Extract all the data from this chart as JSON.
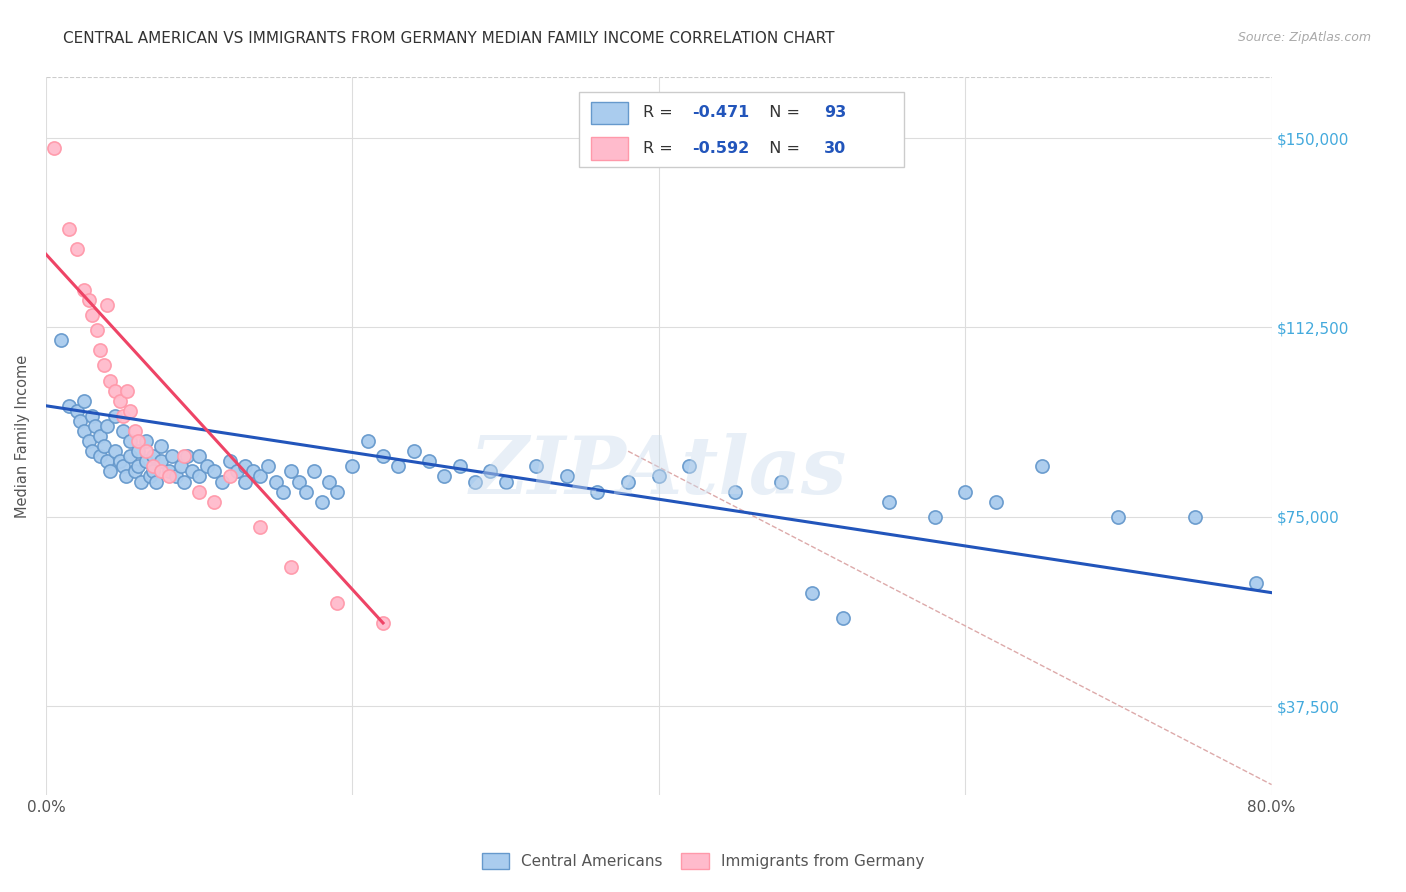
{
  "title": "CENTRAL AMERICAN VS IMMIGRANTS FROM GERMANY MEDIAN FAMILY INCOME CORRELATION CHART",
  "source": "Source: ZipAtlas.com",
  "ylabel": "Median Family Income",
  "x_min": 0.0,
  "x_max": 0.8,
  "y_min": 20000,
  "y_max": 162000,
  "x_ticks": [
    0.0,
    0.2,
    0.4,
    0.6,
    0.8
  ],
  "y_ticks": [
    37500,
    75000,
    112500,
    150000
  ],
  "y_tick_labels": [
    "$37,500",
    "$75,000",
    "$112,500",
    "$150,000"
  ],
  "watermark": "ZIPAtlas",
  "blue_marker_face": "#AACCEE",
  "blue_marker_edge": "#6699CC",
  "pink_marker_face": "#FFBBCC",
  "pink_marker_edge": "#FF99AA",
  "blue_line_color": "#2255BB",
  "pink_line_color": "#EE4466",
  "dashed_line_color": "#DDAAAA",
  "grid_color": "#DDDDDD",
  "R_blue": -0.471,
  "N_blue": 93,
  "R_pink": -0.592,
  "N_pink": 30,
  "legend_label_blue": "Central Americans",
  "legend_label_pink": "Immigrants from Germany",
  "blue_scatter_x": [
    0.01,
    0.015,
    0.02,
    0.022,
    0.025,
    0.025,
    0.028,
    0.03,
    0.03,
    0.032,
    0.035,
    0.035,
    0.038,
    0.04,
    0.04,
    0.042,
    0.045,
    0.045,
    0.048,
    0.05,
    0.05,
    0.052,
    0.055,
    0.055,
    0.058,
    0.06,
    0.06,
    0.062,
    0.065,
    0.065,
    0.068,
    0.07,
    0.07,
    0.072,
    0.075,
    0.075,
    0.08,
    0.082,
    0.085,
    0.088,
    0.09,
    0.092,
    0.095,
    0.1,
    0.1,
    0.105,
    0.11,
    0.115,
    0.12,
    0.125,
    0.13,
    0.13,
    0.135,
    0.14,
    0.145,
    0.15,
    0.155,
    0.16,
    0.165,
    0.17,
    0.175,
    0.18,
    0.185,
    0.19,
    0.2,
    0.21,
    0.22,
    0.23,
    0.24,
    0.25,
    0.26,
    0.27,
    0.28,
    0.29,
    0.3,
    0.32,
    0.34,
    0.36,
    0.38,
    0.4,
    0.42,
    0.45,
    0.48,
    0.5,
    0.52,
    0.55,
    0.58,
    0.6,
    0.62,
    0.65,
    0.7,
    0.75,
    0.79
  ],
  "blue_scatter_y": [
    110000,
    97000,
    96000,
    94000,
    92000,
    98000,
    90000,
    95000,
    88000,
    93000,
    87000,
    91000,
    89000,
    86000,
    93000,
    84000,
    95000,
    88000,
    86000,
    92000,
    85000,
    83000,
    90000,
    87000,
    84000,
    88000,
    85000,
    82000,
    90000,
    86000,
    83000,
    87000,
    84000,
    82000,
    86000,
    89000,
    84000,
    87000,
    83000,
    85000,
    82000,
    87000,
    84000,
    87000,
    83000,
    85000,
    84000,
    82000,
    86000,
    84000,
    85000,
    82000,
    84000,
    83000,
    85000,
    82000,
    80000,
    84000,
    82000,
    80000,
    84000,
    78000,
    82000,
    80000,
    85000,
    90000,
    87000,
    85000,
    88000,
    86000,
    83000,
    85000,
    82000,
    84000,
    82000,
    85000,
    83000,
    80000,
    82000,
    83000,
    85000,
    80000,
    82000,
    60000,
    55000,
    78000,
    75000,
    80000,
    78000,
    85000,
    75000,
    75000,
    62000
  ],
  "pink_scatter_x": [
    0.005,
    0.015,
    0.02,
    0.025,
    0.028,
    0.03,
    0.033,
    0.035,
    0.038,
    0.04,
    0.042,
    0.045,
    0.048,
    0.05,
    0.053,
    0.055,
    0.058,
    0.06,
    0.065,
    0.07,
    0.075,
    0.08,
    0.09,
    0.1,
    0.11,
    0.12,
    0.14,
    0.16,
    0.19,
    0.22
  ],
  "pink_scatter_y": [
    148000,
    132000,
    128000,
    120000,
    118000,
    115000,
    112000,
    108000,
    105000,
    117000,
    102000,
    100000,
    98000,
    95000,
    100000,
    96000,
    92000,
    90000,
    88000,
    85000,
    84000,
    83000,
    87000,
    80000,
    78000,
    83000,
    73000,
    65000,
    58000,
    54000
  ],
  "blue_line_x0": 0.0,
  "blue_line_y0": 97000,
  "blue_line_x1": 0.8,
  "blue_line_y1": 60000,
  "pink_line_x0": 0.0,
  "pink_line_y0": 127000,
  "pink_line_x1": 0.22,
  "pink_line_y1": 54000,
  "diag_line_x0": 0.38,
  "diag_line_y0": 88000,
  "diag_line_x1": 0.8,
  "diag_line_y1": 22000
}
